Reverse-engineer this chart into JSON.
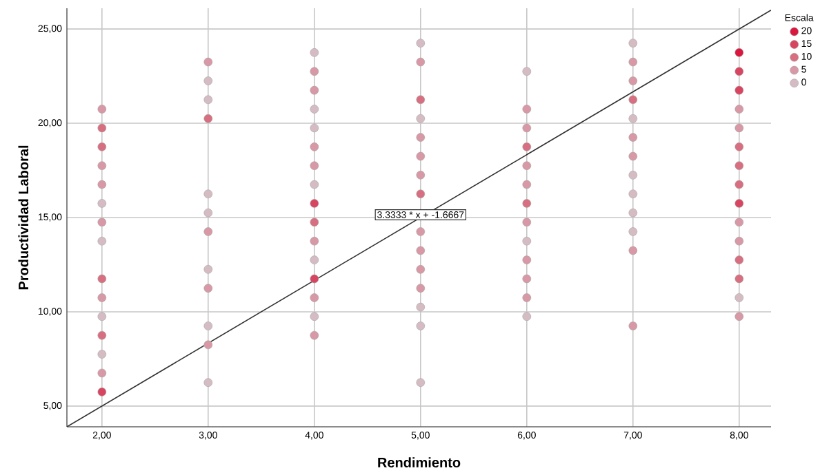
{
  "chart_data": {
    "type": "scatter",
    "xlabel": "Rendimiento",
    "ylabel": "Productividad Laboral",
    "legend_title": "Escala",
    "xlim": [
      1.67,
      8.3
    ],
    "ylim": [
      3.9,
      26.1
    ],
    "xticks": [
      {
        "value": 2,
        "label": "2,00"
      },
      {
        "value": 3,
        "label": "3,00"
      },
      {
        "value": 4,
        "label": "4,00"
      },
      {
        "value": 5,
        "label": "5,00"
      },
      {
        "value": 6,
        "label": "6,00"
      },
      {
        "value": 7,
        "label": "7,00"
      },
      {
        "value": 8,
        "label": "8,00"
      }
    ],
    "yticks": [
      {
        "value": 5,
        "label": "5,00"
      },
      {
        "value": 10,
        "label": "10,00"
      },
      {
        "value": 15,
        "label": "15,00"
      },
      {
        "value": 20,
        "label": "20,00"
      },
      {
        "value": 25,
        "label": "25,00"
      }
    ],
    "grid": true,
    "legend": "top right",
    "annotations": [
      {
        "text": "3.3333 * x + -1.6667",
        "x": 5,
        "y": 15
      }
    ],
    "series": [
      {
        "name": "20",
        "marker": "circle",
        "color": "#d9173f",
        "x": [
          8
        ],
        "values": [
          23.75
        ]
      },
      {
        "name": "15",
        "marker": "circle",
        "color": "#d84560",
        "x": [
          2,
          4,
          4,
          8,
          8,
          8
        ],
        "values": [
          5.75,
          15.75,
          11.75,
          22.75,
          21.75,
          15.75
        ]
      },
      {
        "name": "10",
        "marker": "circle",
        "color": "#d76f80",
        "x": [
          2,
          2,
          2,
          2,
          3,
          4,
          5,
          5,
          6,
          6,
          7,
          8,
          8,
          8,
          8,
          8
        ],
        "values": [
          19.75,
          18.75,
          11.75,
          8.75,
          20.25,
          14.75,
          21.25,
          16.25,
          18.75,
          15.75,
          21.25,
          18.75,
          17.75,
          16.75,
          12.75,
          11.75
        ]
      },
      {
        "name": "5",
        "marker": "circle",
        "color": "#d898a6",
        "x": [
          2,
          2,
          2,
          2,
          2,
          2,
          3,
          3,
          3,
          3,
          4,
          4,
          4,
          4,
          4,
          4,
          4,
          5,
          5,
          5,
          5,
          5,
          5,
          5,
          5,
          6,
          6,
          6,
          6,
          6,
          6,
          6,
          6,
          7,
          7,
          7,
          7,
          7,
          7,
          8,
          8,
          8,
          8,
          8
        ],
        "values": [
          20.75,
          17.75,
          16.75,
          14.75,
          10.75,
          6.75,
          23.25,
          14.25,
          11.25,
          8.25,
          22.75,
          21.75,
          18.75,
          17.75,
          13.75,
          10.75,
          8.75,
          23.25,
          19.25,
          18.25,
          17.25,
          14.25,
          13.25,
          12.25,
          11.25,
          20.75,
          19.75,
          17.75,
          16.75,
          14.75,
          12.75,
          11.75,
          10.75,
          23.25,
          22.25,
          19.25,
          18.25,
          13.25,
          9.25,
          20.75,
          19.75,
          14.75,
          13.75,
          9.75
        ]
      },
      {
        "name": "0",
        "marker": "circle",
        "color": "#d5bcc3",
        "x": [
          2,
          2,
          2,
          2,
          3,
          3,
          3,
          3,
          3,
          3,
          3,
          4,
          4,
          4,
          4,
          4,
          4,
          5,
          5,
          5,
          5,
          5,
          6,
          6,
          6,
          7,
          7,
          7,
          7,
          7,
          7,
          8
        ],
        "values": [
          15.75,
          13.75,
          9.75,
          7.75,
          22.25,
          21.25,
          16.25,
          15.25,
          12.25,
          9.25,
          6.25,
          23.75,
          20.75,
          19.75,
          16.75,
          12.75,
          9.75,
          24.25,
          20.25,
          10.25,
          9.25,
          6.25,
          22.75,
          13.75,
          9.75,
          24.25,
          20.25,
          17.25,
          16.25,
          15.25,
          14.25,
          10.75
        ]
      },
      {
        "type": "line",
        "marker": "none",
        "color": "#333333",
        "x": [
          1.67,
          8.3
        ],
        "values": [
          3.9,
          26.0
        ]
      }
    ]
  }
}
